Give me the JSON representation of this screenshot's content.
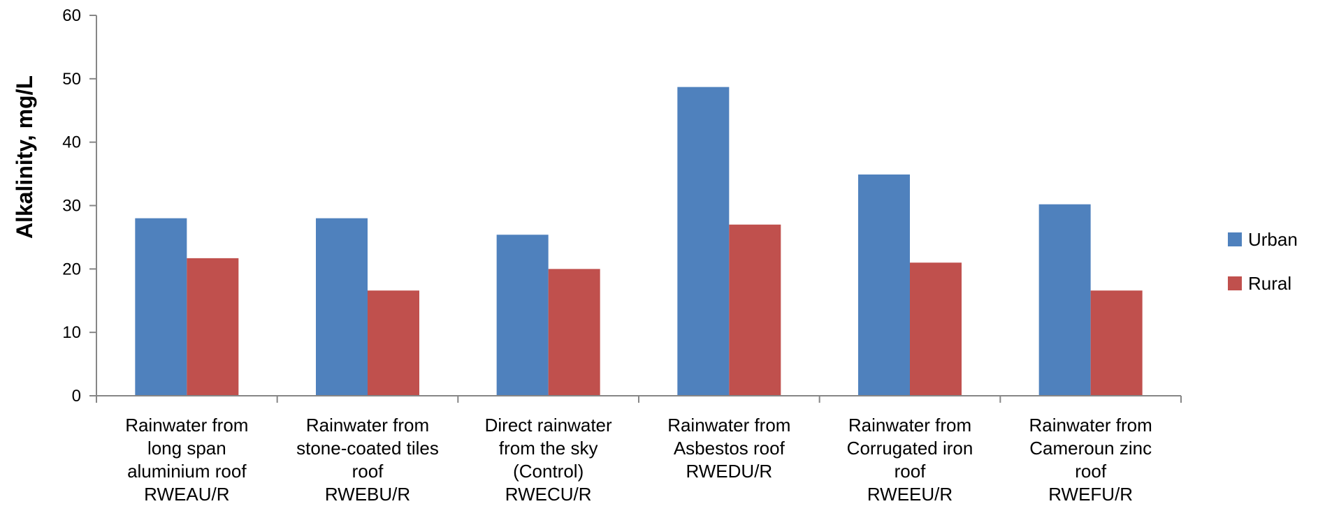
{
  "chart_data": {
    "type": "bar",
    "title": "",
    "xlabel": "",
    "ylabel": "Alkalinity, mg/L",
    "ylim": [
      0,
      60
    ],
    "yticks": [
      0,
      10,
      20,
      30,
      40,
      50,
      60
    ],
    "grid": false,
    "legend_position": "right",
    "categories": [
      [
        "Rainwater from",
        "long span",
        "aluminium roof",
        "RWEAU/R"
      ],
      [
        "Rainwater from",
        "stone-coated tiles",
        "roof",
        "RWEBU/R"
      ],
      [
        "Direct rainwater",
        "from the sky",
        "(Control)",
        "RWECU/R"
      ],
      [
        "Rainwater from",
        "Asbestos roof",
        "RWEDU/R"
      ],
      [
        "Rainwater from",
        "Corrugated iron",
        "roof",
        "RWEEU/R"
      ],
      [
        "Rainwater from",
        "Cameroun zinc",
        "roof",
        "RWEFU/R"
      ]
    ],
    "series": [
      {
        "name": "Urban",
        "color": "#4F81BD",
        "values": [
          28.0,
          28.0,
          25.4,
          48.7,
          34.9,
          30.2
        ]
      },
      {
        "name": "Rural",
        "color": "#C0504D",
        "values": [
          21.7,
          16.6,
          20.0,
          27.0,
          21.0,
          16.6
        ]
      }
    ]
  }
}
